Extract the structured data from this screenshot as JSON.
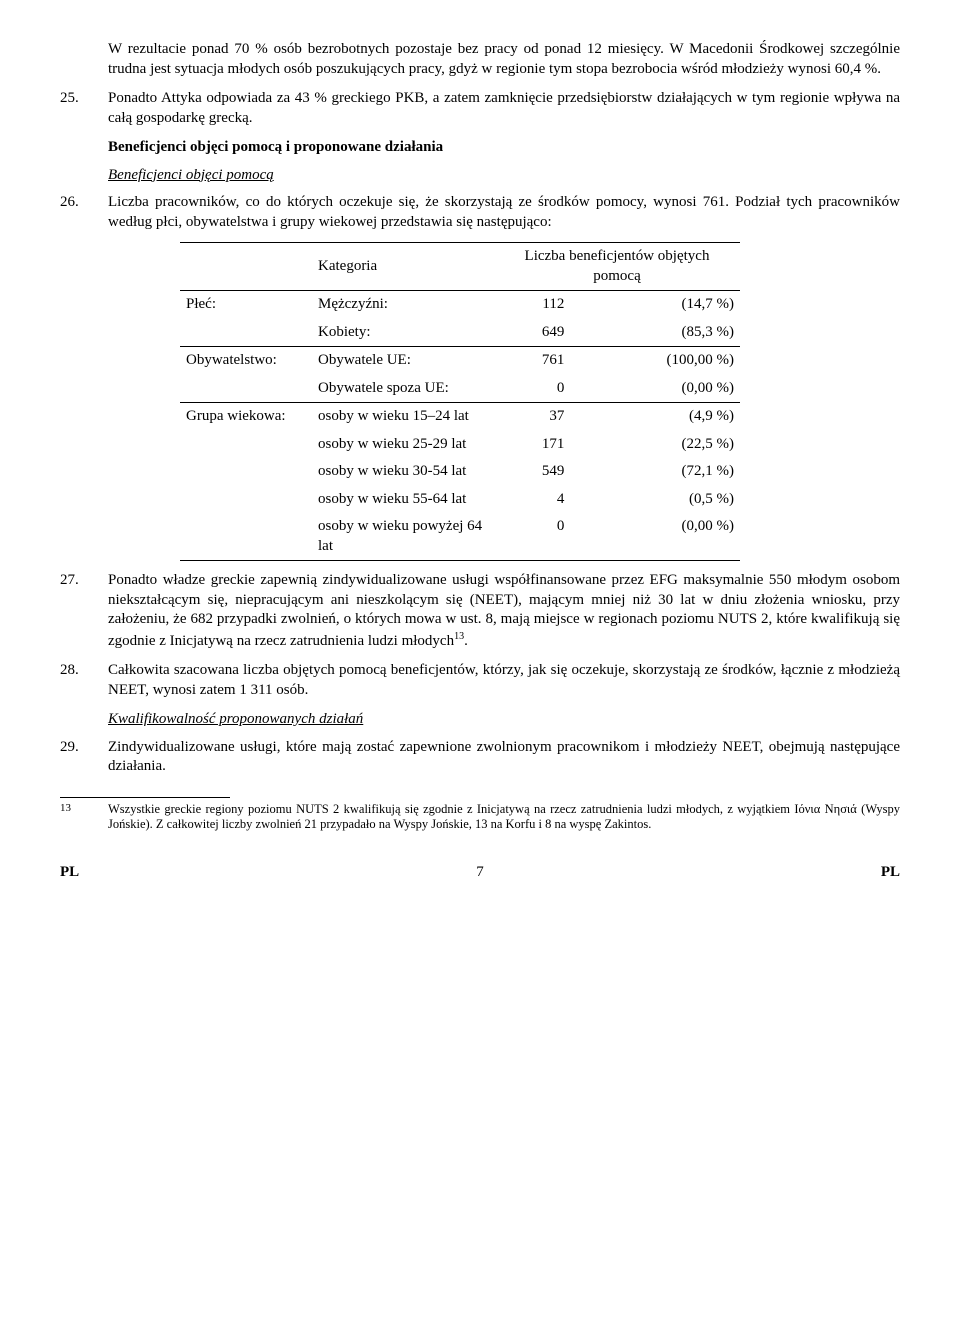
{
  "paragraphs": {
    "p24_intro": "W rezultacie ponad 70 % osób bezrobotnych pozostaje bez pracy od ponad 12 miesięcy. W Macedonii Środkowej szczególnie trudna jest sytuacja młodych osób poszukujących pracy, gdyż w regionie tym stopa bezrobocia wśród młodzieży wynosi 60,4 %.",
    "p25_num": "25.",
    "p25_body": "Ponadto Attyka odpowiada za 43 % greckiego PKB, a zatem zamknięcie przedsiębiorstw działających w tym regionie wpływa na całą gospodarkę grecką.",
    "heading1": "Beneficjenci objęci pomocą i proponowane działania",
    "subheading1": "Beneficjenci objęci pomocą",
    "p26_num": "26.",
    "p26_body": "Liczba pracowników, co do których oczekuje się, że skorzystają ze środków pomocy, wynosi 761. Podział tych pracowników według płci, obywatelstwa i grupy wiekowej przedstawia się następująco:",
    "p27_num": "27.",
    "p27_body_a": "Ponadto władze greckie zapewnią zindywidualizowane usługi współfinansowane przez EFG maksymalnie 550 młodym osobom niekształcącym się, niepracującym ani nieszkolącym się (NEET), mającym mniej niż 30 lat w dniu złożenia wniosku, przy założeniu, że 682 przypadki zwolnień, o których mowa w ust. 8, mają miejsce w regionach poziomu NUTS 2, które kwalifikują się zgodnie z Inicjatywą na rzecz zatrudnienia ludzi młodych",
    "p27_body_b": ".",
    "p27_sup": "13",
    "p28_num": "28.",
    "p28_body": "Całkowita szacowana liczba objętych pomocą beneficjentów, którzy, jak się oczekuje, skorzystają ze środków, łącznie z młodzieżą NEET, wynosi zatem 1 311 osób.",
    "subheading2": "Kwalifikowalność proponowanych działań",
    "p29_num": "29.",
    "p29_body": "Zindywidualizowane usługi, które mają zostać zapewnione zwolnionym pracownikom i młodzieży NEET, obejmują następujące działania."
  },
  "table": {
    "header_cat": "Kategoria",
    "header_count": "Liczba beneficjentów objętych pomocą",
    "rows": [
      {
        "group": "Płeć:",
        "label": "Mężczyźni:",
        "n": "112",
        "p": "(14,7 %)",
        "sep": true
      },
      {
        "group": "",
        "label": "Kobiety:",
        "n": "649",
        "p": "(85,3 %)"
      },
      {
        "group": "Obywatelstwo:",
        "label": "Obywatele UE:",
        "n": "761",
        "p": "(100,00 %)",
        "sep": true
      },
      {
        "group": "",
        "label": "Obywatele spoza UE:",
        "n": "0",
        "p": "(0,00 %)"
      },
      {
        "group": "Grupa wiekowa:",
        "label": "osoby w wieku 15–24 lat",
        "n": "37",
        "p": "(4,9 %)",
        "sep": true
      },
      {
        "group": "",
        "label": "osoby w wieku 25-29 lat",
        "n": "171",
        "p": "(22,5 %)"
      },
      {
        "group": "",
        "label": "osoby w wieku 30-54 lat",
        "n": "549",
        "p": "(72,1 %)"
      },
      {
        "group": "",
        "label": "osoby w wieku 55-64 lat",
        "n": "4",
        "p": "(0,5 %)"
      },
      {
        "group": "",
        "label": "osoby w wieku powyżej 64 lat",
        "n": "0",
        "p": "(0,00 %)",
        "last": true
      }
    ]
  },
  "footnote": {
    "num": "13",
    "body": "Wszystkie greckie regiony poziomu NUTS 2 kwalifikują się zgodnie z Inicjatywą na rzecz zatrudnienia ludzi młodych, z wyjątkiem Ιόνια Νησιά (Wyspy Jońskie). Z całkowitej liczby zwolnień 21 przypadało na Wyspy Jońskie, 13 na Korfu i 8 na wyspę Zakintos."
  },
  "footer": {
    "left": "PL",
    "page": "7",
    "right": "PL"
  }
}
